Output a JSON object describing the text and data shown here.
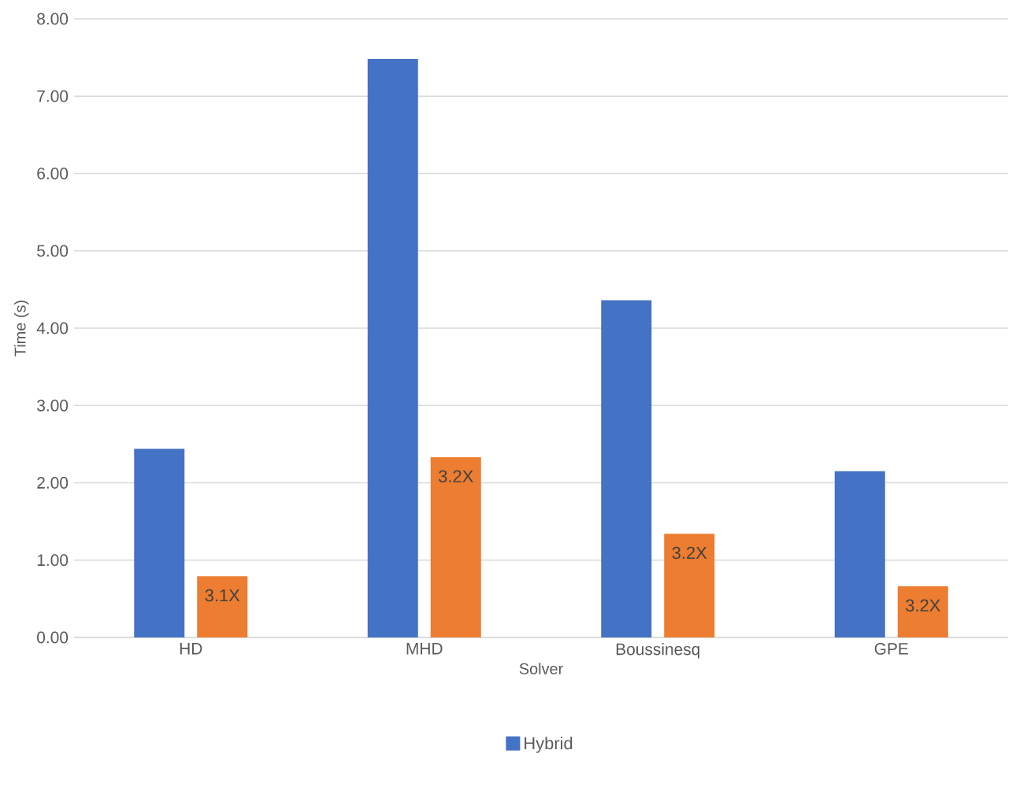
{
  "chart_data": {
    "type": "bar",
    "xlabel": "Solver",
    "ylabel": "Time (s)",
    "categories": [
      "HD",
      "MHD",
      "Boussinesq",
      "GPE"
    ],
    "series": [
      {
        "name": "Hybrid",
        "color": "#4472c4",
        "values": [
          2.44,
          7.48,
          4.36,
          2.15
        ]
      },
      {
        "color": "#ed7d31",
        "values": [
          0.79,
          2.33,
          1.34,
          0.66
        ]
      }
    ],
    "annotations": [
      {
        "text": "3.1X",
        "x": "HD",
        "y": 0.79
      },
      {
        "text": "3.2X",
        "x": "MHD",
        "y": 2.33
      },
      {
        "text": "3.2X",
        "x": "Boussinesq",
        "y": 1.34
      },
      {
        "text": "3.2X",
        "x": "GPE",
        "y": 0.66
      }
    ],
    "ylim": [
      0,
      8
    ],
    "yticks": [
      {
        "value": 0,
        "label": "0.00"
      },
      {
        "value": 1,
        "label": "1.00"
      },
      {
        "value": 2,
        "label": "2.00"
      },
      {
        "value": 3,
        "label": "3.00"
      },
      {
        "value": 4,
        "label": "4.00"
      },
      {
        "value": 5,
        "label": "5.00"
      },
      {
        "value": 6,
        "label": "6.00"
      },
      {
        "value": 7,
        "label": "7.00"
      },
      {
        "value": 8,
        "label": "8.00"
      }
    ],
    "grid": "y",
    "legend": "bottom"
  }
}
